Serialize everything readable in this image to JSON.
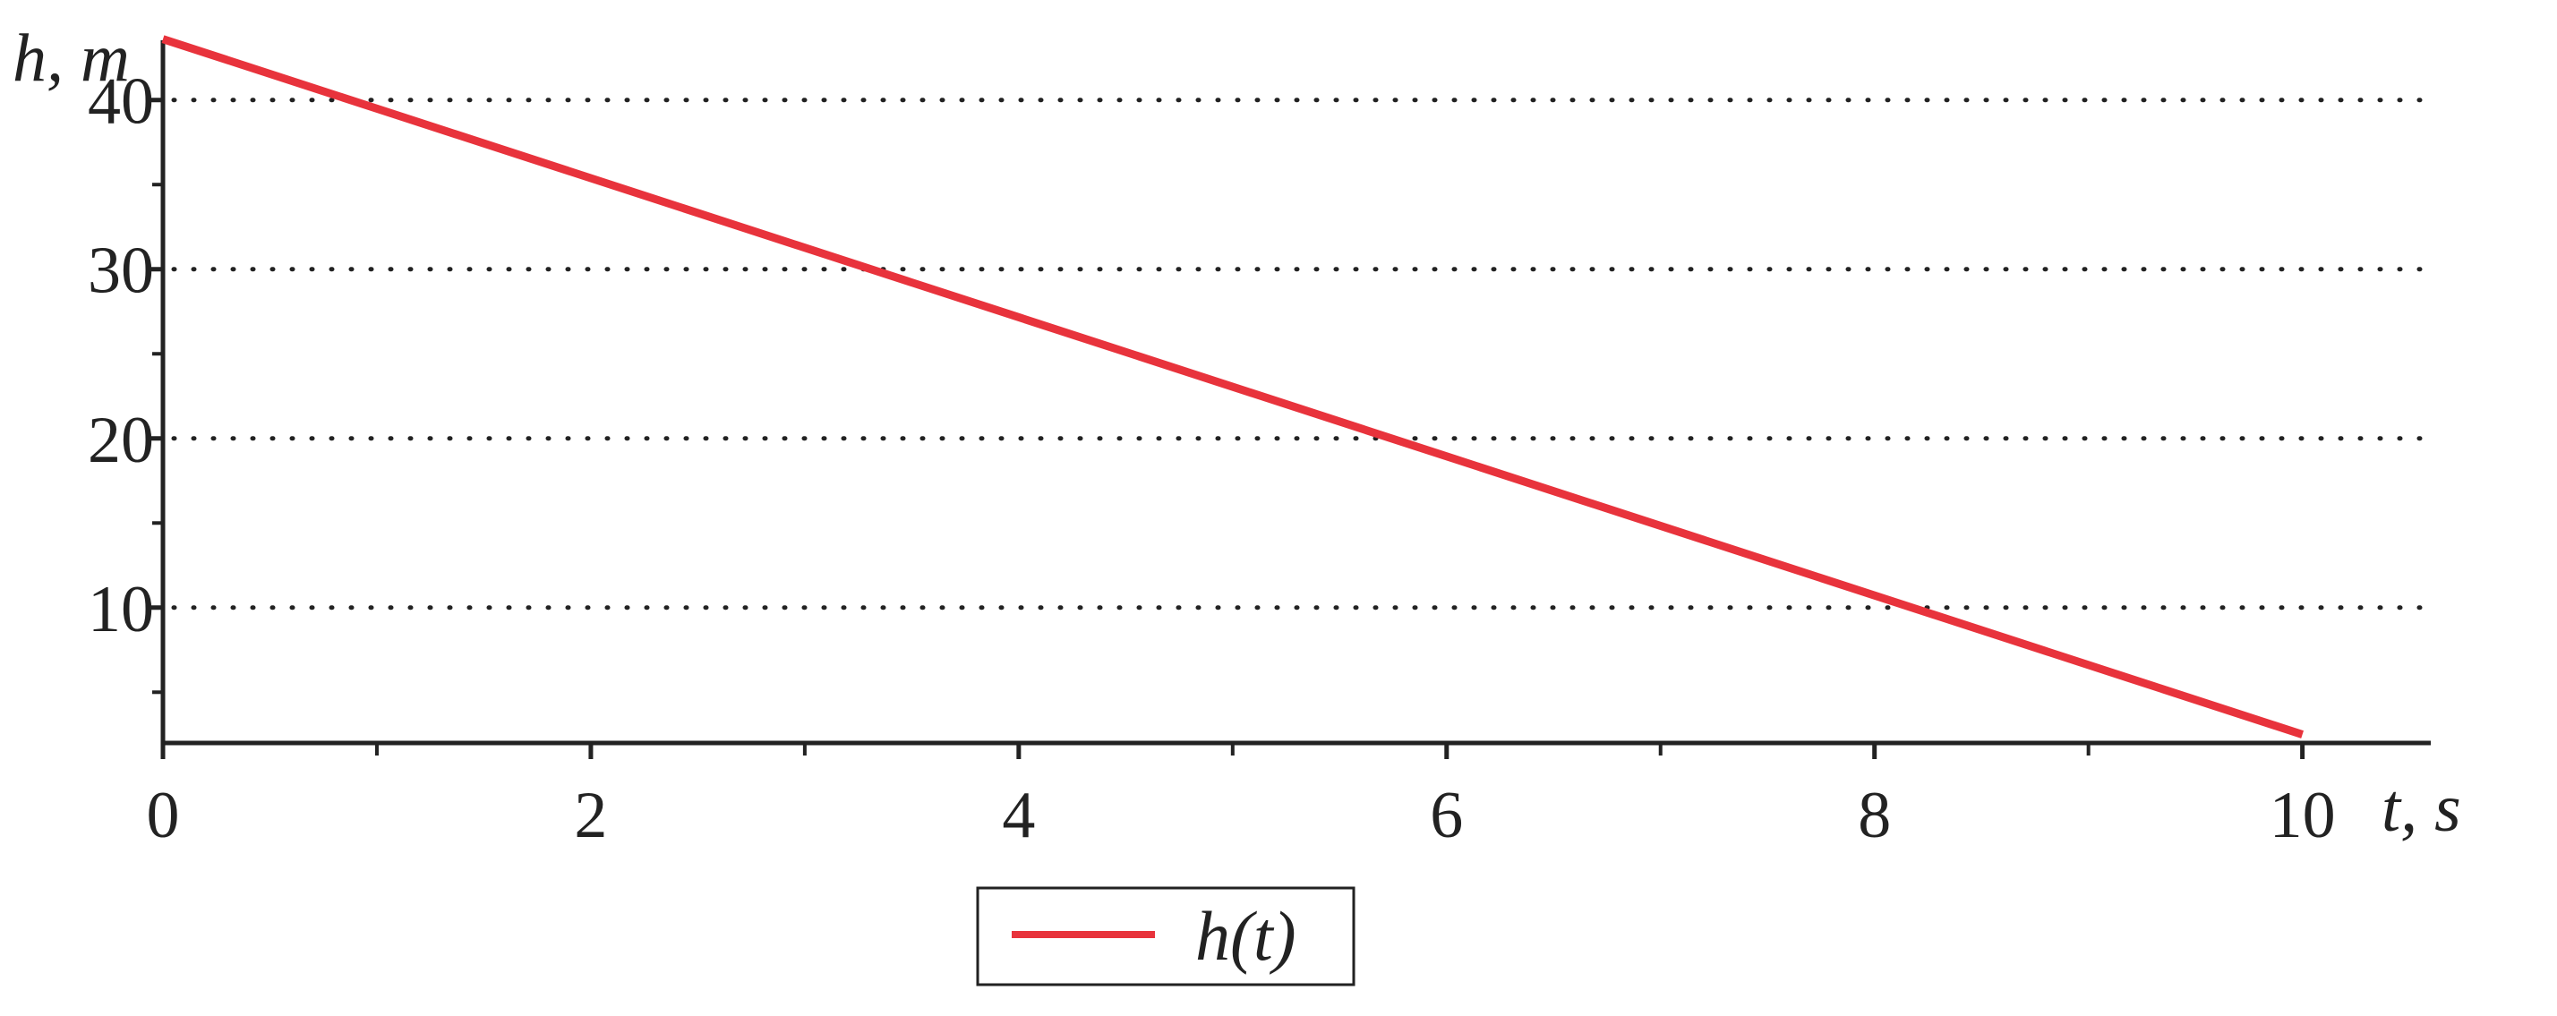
{
  "chart_data": {
    "type": "line",
    "title": "",
    "xlabel": "t, s",
    "ylabel": "h, m",
    "xlim": [
      0,
      10.6
    ],
    "ylim": [
      2,
      43
    ],
    "x_ticks": [
      0,
      2,
      4,
      6,
      8,
      10
    ],
    "x_tick_labels": [
      "0",
      "2",
      "4",
      "6",
      "8",
      "10"
    ],
    "x_minor_ticks": [
      1,
      3,
      5,
      7,
      9
    ],
    "y_ticks": [
      10,
      20,
      30,
      40
    ],
    "y_tick_labels": [
      "10",
      "20",
      "30",
      "40"
    ],
    "y_minor_ticks": [
      5,
      15,
      25,
      35
    ],
    "grid": "horizontal dotted at major y ticks",
    "legend": {
      "placement": "bottom-center",
      "entries": [
        {
          "label": "h(t)",
          "color": "#e8333c"
        }
      ]
    },
    "series": [
      {
        "name": "h(t)",
        "color": "#e8333c",
        "x": [
          0,
          10
        ],
        "y": [
          43.6,
          2.5
        ]
      }
    ]
  }
}
